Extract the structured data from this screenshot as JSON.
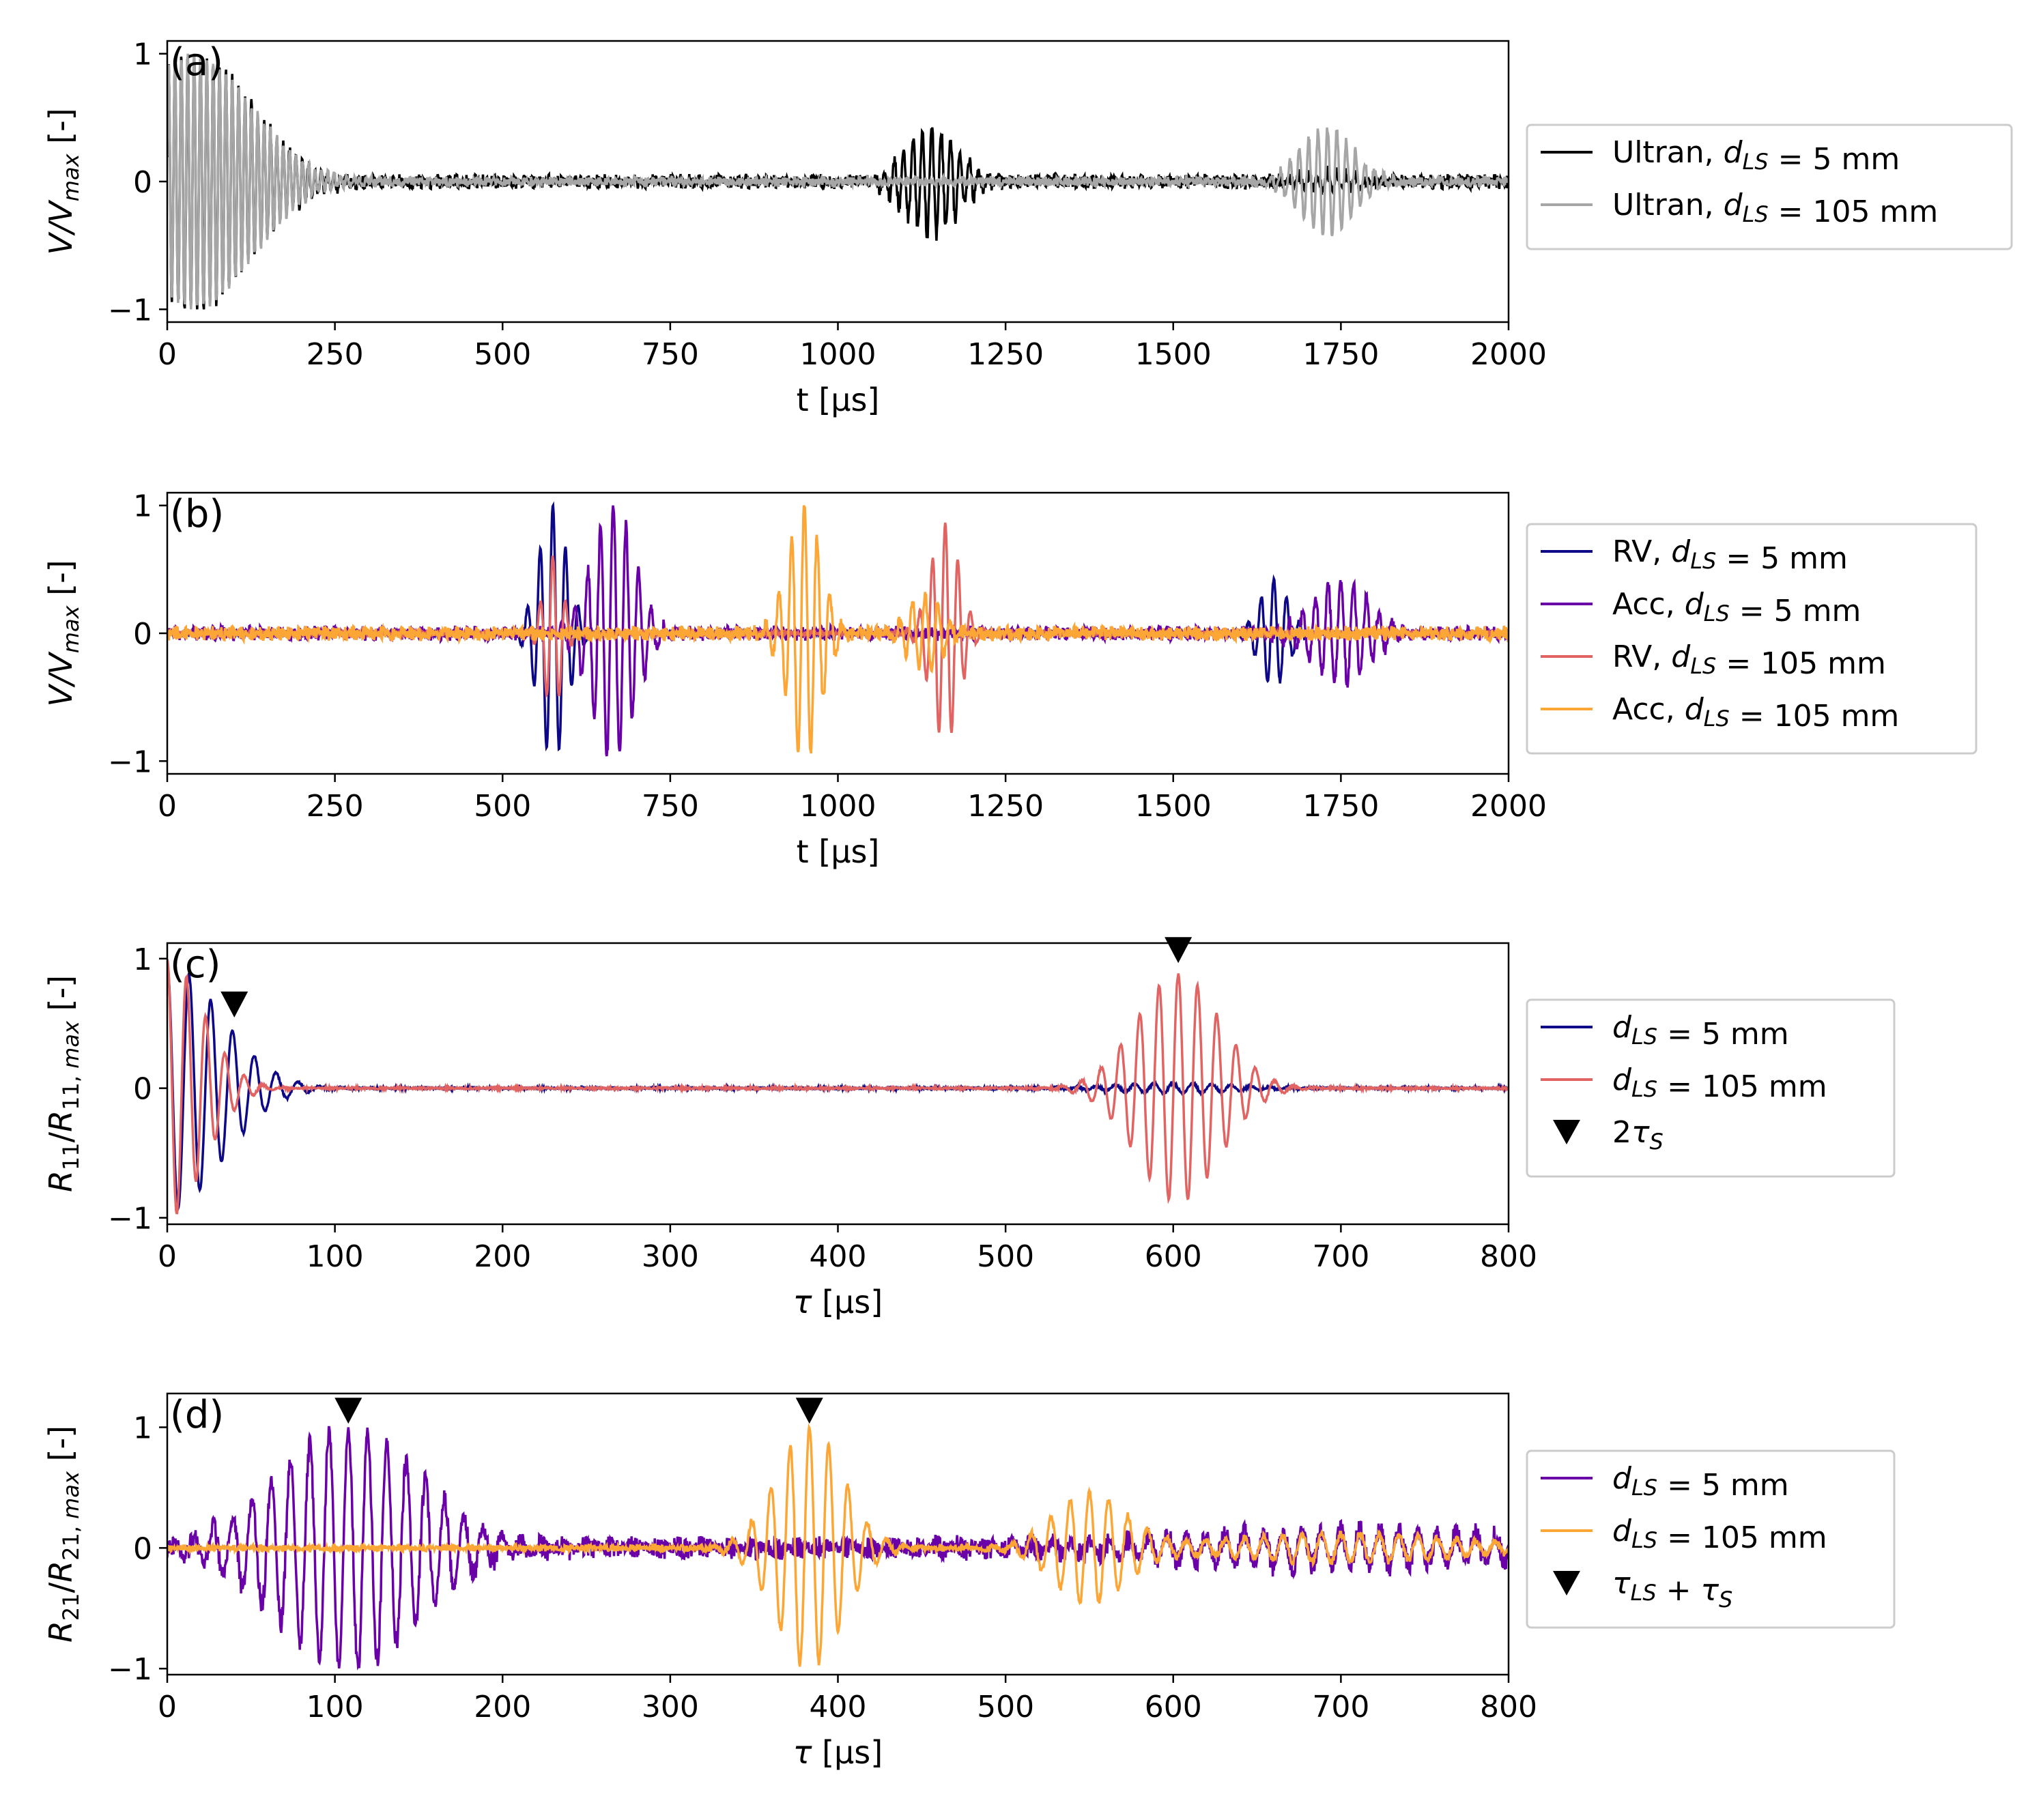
{
  "chart_data": [
    {
      "id": "a",
      "type": "line",
      "panel_label": "(a)",
      "xlabel": "t [μs]",
      "ylabel": "V/V_max [-]",
      "xlim": [
        0,
        2000
      ],
      "ylim": [
        -1.1,
        1.1
      ],
      "xticks": [
        0,
        250,
        500,
        750,
        1000,
        1250,
        1500,
        1750,
        2000
      ],
      "yticks": [
        -1,
        0,
        1
      ],
      "ytick_labels": [
        "−1",
        "0",
        "1"
      ],
      "series": [
        {
          "name": "Ultran, d_LS = 5 mm",
          "legend_text": "Ultran, ",
          "legend_math": "d_LS = 5 mm",
          "color": "#000000",
          "noise": 0.06,
          "bursts": [
            {
              "center": 40,
              "amplitude": 1.0,
              "width": 120,
              "period": 9.5
            },
            {
              "center": 1140,
              "amplitude": 0.42,
              "width": 55,
              "period": 14
            },
            {
              "center": 1730,
              "amplitude": 0.06,
              "width": 60,
              "period": 14
            }
          ]
        },
        {
          "name": "Ultran, d_LS = 105 mm",
          "legend_text": "Ultran, ",
          "legend_math": "d_LS = 105 mm",
          "color": "#a6a6a6",
          "noise": 0.04,
          "bursts": [
            {
              "center": 40,
              "amplitude": 1.0,
              "width": 120,
              "period": 9.5
            },
            {
              "center": 1730,
              "amplitude": 0.42,
              "width": 55,
              "period": 14
            }
          ]
        }
      ]
    },
    {
      "id": "b",
      "type": "line",
      "panel_label": "(b)",
      "xlabel": "t [μs]",
      "ylabel": "V/V_max [-]",
      "xlim": [
        0,
        2000
      ],
      "ylim": [
        -1.1,
        1.1
      ],
      "xticks": [
        0,
        250,
        500,
        750,
        1000,
        1250,
        1500,
        1750,
        2000
      ],
      "yticks": [
        -1,
        0,
        1
      ],
      "ytick_labels": [
        "−1",
        "0",
        "1"
      ],
      "series": [
        {
          "name": "RV, d_LS = 5 mm",
          "legend_text": "RV, ",
          "legend_math": "d_LS = 5 mm",
          "color": "#0d0887",
          "noise": 0.02,
          "bursts": [
            {
              "center": 575,
              "amplitude": 1.0,
              "width": 30,
              "period": 19
            },
            {
              "center": 1650,
              "amplitude": 0.42,
              "width": 30,
              "period": 19
            }
          ]
        },
        {
          "name": "Acc, d_LS = 5 mm",
          "legend_text": "Acc, ",
          "legend_math": "d_LS = 5 mm",
          "color": "#6a00a8",
          "noise": 0.06,
          "bursts": [
            {
              "center": 665,
              "amplitude": 1.0,
              "width": 45,
              "period": 19
            },
            {
              "center": 1750,
              "amplitude": 0.4,
              "width": 60,
              "period": 19
            }
          ]
        },
        {
          "name": "RV, d_LS = 105 mm",
          "legend_text": "RV, ",
          "legend_math": "d_LS = 105 mm",
          "color": "#e16462",
          "noise": 0.02,
          "bursts": [
            {
              "center": 575,
              "amplitude": 0.6,
              "width": 20,
              "period": 19
            },
            {
              "center": 1160,
              "amplitude": 0.85,
              "width": 30,
              "period": 19
            }
          ]
        },
        {
          "name": "Acc, d_LS = 105 mm",
          "legend_text": "Acc, ",
          "legend_math": "d_LS = 105 mm",
          "color": "#fca636",
          "noise": 0.06,
          "bursts": [
            {
              "center": 950,
              "amplitude": 1.0,
              "width": 35,
              "period": 19
            },
            {
              "center": 1130,
              "amplitude": 0.3,
              "width": 35,
              "period": 19
            }
          ]
        }
      ]
    },
    {
      "id": "c",
      "type": "line",
      "panel_label": "(c)",
      "xlabel": "τ [μs]",
      "ylabel": "R11/R11,max [-]",
      "xlim": [
        0,
        800
      ],
      "ylim": [
        -1.05,
        1.12
      ],
      "xticks": [
        0,
        100,
        200,
        300,
        400,
        500,
        600,
        700,
        800
      ],
      "yticks": [
        -1,
        0,
        1
      ],
      "ytick_labels": [
        "−1",
        "0",
        "1"
      ],
      "series": [
        {
          "name": "d_LS = 5 mm",
          "legend_text": "",
          "legend_math": "d_LS = 5 mm",
          "color": "#0d0887",
          "noise": 0.01,
          "bursts": [
            {
              "center": 0,
              "amplitude": 0.95,
              "width": 45,
              "period": 13
            },
            {
              "center": 600,
              "amplitude": 0.04,
              "width": 50,
              "period": 11.5
            }
          ]
        },
        {
          "name": "d_LS = 105 mm",
          "legend_text": "",
          "legend_math": "d_LS = 105 mm",
          "color": "#e16462",
          "noise": 0.01,
          "bursts": [
            {
              "center": 0,
              "amplitude": 1.0,
              "width": 30,
              "period": 11.5
            },
            {
              "center": 603,
              "amplitude": 0.88,
              "width": 35,
              "period": 11.5
            }
          ]
        }
      ],
      "markers": {
        "name": "2τ_S",
        "legend_math": "2τ_S",
        "x": [
          40,
          603
        ],
        "y": [
          0.63,
          1.05
        ]
      }
    },
    {
      "id": "d",
      "type": "line",
      "panel_label": "(d)",
      "xlabel": "τ [μs]",
      "ylabel": "R21/R21,max [-]",
      "xlim": [
        0,
        800
      ],
      "ylim": [
        -1.05,
        1.28
      ],
      "xticks": [
        0,
        100,
        200,
        300,
        400,
        500,
        600,
        700,
        800
      ],
      "yticks": [
        -1,
        0,
        1
      ],
      "ytick_labels": [
        "−1",
        "0",
        "1"
      ],
      "series": [
        {
          "name": "d_LS = 5 mm",
          "legend_text": "",
          "legend_math": "d_LS = 5 mm",
          "color": "#6a00a8",
          "noise": 0.1,
          "bursts": [
            {
              "center": 108,
              "amplitude": 1.0,
              "width": 60,
              "period": 11.5
            },
            {
              "center": 700,
              "amplitude": 0.15,
              "width": 150,
              "period": 11.5
            }
          ]
        },
        {
          "name": "d_LS = 105 mm",
          "legend_text": "",
          "legend_math": "d_LS = 105 mm",
          "color": "#fca636",
          "noise": 0.03,
          "bursts": [
            {
              "center": 383,
              "amplitude": 1.0,
              "width": 28,
              "period": 11.5
            },
            {
              "center": 550,
              "amplitude": 0.45,
              "width": 30,
              "period": 11.5
            },
            {
              "center": 700,
              "amplitude": 0.12,
              "width": 100,
              "period": 11.5
            }
          ]
        }
      ],
      "markers": {
        "name": "τ_LS + τ_S",
        "legend_math": "τ_LS + τ_S",
        "x": [
          108,
          383
        ],
        "y": [
          1.12,
          1.12
        ]
      }
    }
  ]
}
